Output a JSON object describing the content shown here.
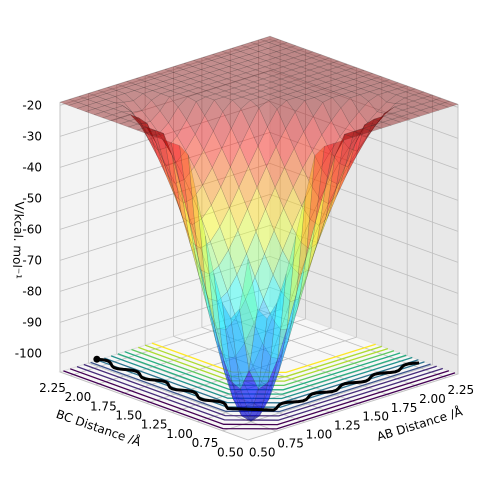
{
  "chart_data": {
    "type": "surface",
    "title": "",
    "xlabel": "AB Distance /Å",
    "ylabel": "BC Distance /Å",
    "zlabel": "V/kcal. mol⁻¹",
    "xlim": [
      0.5,
      2.35
    ],
    "ylim": [
      0.5,
      2.35
    ],
    "zlim": [
      -106,
      -19
    ],
    "x_ticks": [
      "0.50",
      "0.75",
      "1.00",
      "1.25",
      "1.50",
      "1.75",
      "2.00",
      "2.25"
    ],
    "y_ticks": [
      "0.50",
      "0.75",
      "1.00",
      "1.25",
      "1.50",
      "1.75",
      "2.00",
      "2.25"
    ],
    "z_ticks": [
      "-20",
      "-30",
      "-40",
      "-50",
      "-60",
      "-70",
      "-80",
      "-90",
      "-100"
    ],
    "grid": true,
    "colormap": "jet",
    "contour_colormap": "viridis",
    "trajectory_color": "#000000"
  }
}
